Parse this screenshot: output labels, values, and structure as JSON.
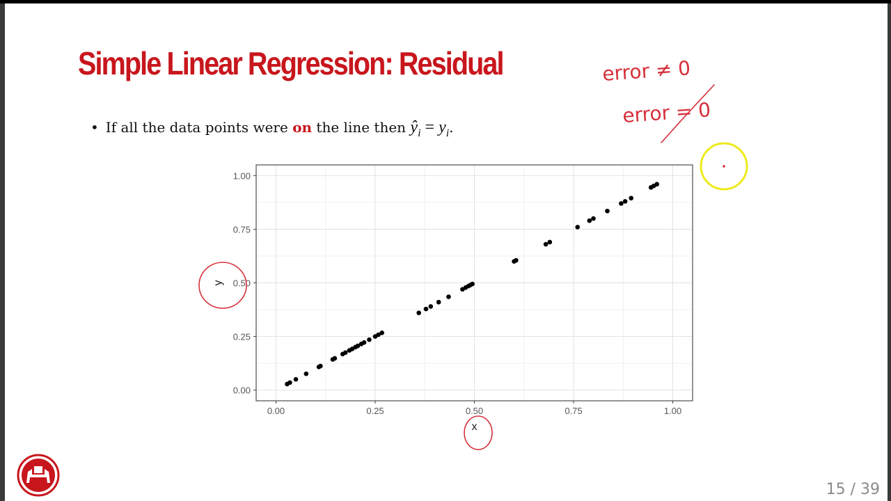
{
  "slide": {
    "title": "Simple Linear Regression: Residual",
    "bullet": {
      "before": "If all the data points were ",
      "emphasis": "on",
      "after": " the line then ",
      "math_lhs": "ŷ",
      "math_lhs_sub": "i",
      "math_eq": " = ",
      "math_rhs": "y",
      "math_rhs_sub": "i",
      "end": "."
    },
    "page_number": "15 / 39"
  },
  "annotations": {
    "note1": "error ≠ 0",
    "note2": "error = 0"
  },
  "colors": {
    "title": "#c8161d",
    "ink_annotation": "#d6303a",
    "highlight_circle": "#eeea1c",
    "points": "#000000"
  },
  "chart_data": {
    "type": "scatter",
    "title": "",
    "xlabel": "x",
    "ylabel": "y",
    "xlim": [
      -0.05,
      1.05
    ],
    "ylim": [
      -0.05,
      1.05
    ],
    "xticks": [
      "0.00",
      "0.25",
      "0.50",
      "0.75",
      "1.00"
    ],
    "yticks": [
      "0.00",
      "0.25",
      "0.50",
      "0.75",
      "1.00"
    ],
    "grid": true,
    "x": [
      0.028,
      0.035,
      0.05,
      0.076,
      0.108,
      0.112,
      0.143,
      0.148,
      0.168,
      0.175,
      0.185,
      0.192,
      0.2,
      0.206,
      0.215,
      0.222,
      0.235,
      0.25,
      0.258,
      0.267,
      0.36,
      0.378,
      0.39,
      0.41,
      0.435,
      0.47,
      0.478,
      0.485,
      0.49,
      0.495,
      0.6,
      0.605,
      0.68,
      0.69,
      0.76,
      0.79,
      0.8,
      0.835,
      0.87,
      0.88,
      0.895,
      0.945,
      0.952,
      0.96
    ],
    "y": [
      0.028,
      0.035,
      0.05,
      0.076,
      0.108,
      0.112,
      0.143,
      0.148,
      0.168,
      0.175,
      0.185,
      0.192,
      0.2,
      0.206,
      0.215,
      0.222,
      0.235,
      0.25,
      0.258,
      0.267,
      0.36,
      0.378,
      0.39,
      0.41,
      0.435,
      0.47,
      0.478,
      0.485,
      0.49,
      0.495,
      0.6,
      0.605,
      0.68,
      0.69,
      0.76,
      0.79,
      0.8,
      0.835,
      0.87,
      0.88,
      0.895,
      0.945,
      0.952,
      0.96
    ]
  }
}
